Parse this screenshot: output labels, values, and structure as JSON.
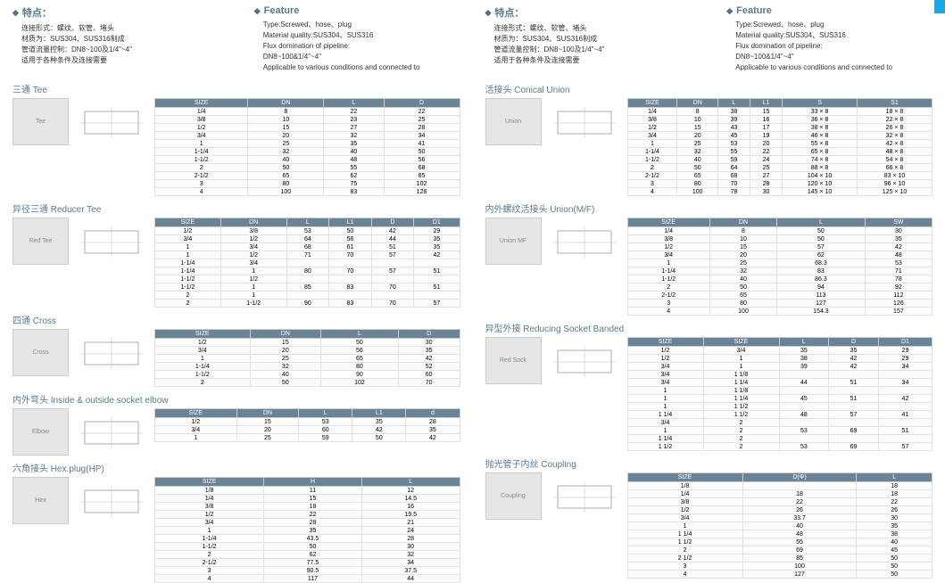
{
  "left": {
    "header_cn": {
      "title": "特点：",
      "lines": [
        "连接形式：螺纹、软管、堵头",
        "材质为：SUS304、SUS316制成",
        "管道流量控制：DN8~100及1/4\"~4\"",
        "适用于各种条件及连接需要"
      ]
    },
    "header_en": {
      "title": "Feature",
      "lines": [
        "Type:Screwed、hose、plug",
        "Material quality:SUS304、SUS316",
        "Flux domination of pipeline:",
        "DN8~100&1/4\"~4\"",
        "Applicable to various conditions and connected to"
      ]
    },
    "sections": [
      {
        "title": "三通 Tee",
        "photo": "Tee",
        "headers": [
          "SIZE",
          "DN",
          "L",
          "D"
        ],
        "rows": [
          [
            "1/4",
            "8",
            "22",
            "22"
          ],
          [
            "3/8",
            "10",
            "23",
            "25"
          ],
          [
            "1/2",
            "15",
            "27",
            "28"
          ],
          [
            "3/4",
            "20",
            "32",
            "34"
          ],
          [
            "1",
            "25",
            "35",
            "41"
          ],
          [
            "1-1/4",
            "32",
            "40",
            "50"
          ],
          [
            "1-1/2",
            "40",
            "48",
            "56"
          ],
          [
            "2",
            "50",
            "55",
            "68"
          ],
          [
            "2-1/2",
            "65",
            "62",
            "85"
          ],
          [
            "3",
            "80",
            "75",
            "102"
          ],
          [
            "4",
            "100",
            "83",
            "128"
          ]
        ]
      },
      {
        "title": "异径三通 Reducer Tee",
        "photo": "Red Tee",
        "headers": [
          "SIZE",
          "DN",
          "L",
          "L1",
          "D",
          "D1"
        ],
        "rows": [
          [
            "1/2",
            "3/8",
            "53",
            "50",
            "42",
            "29"
          ],
          [
            "3/4",
            "1/2",
            "64",
            "56",
            "44",
            "35"
          ],
          [
            "1",
            "3/4",
            "68",
            "61",
            "51",
            "35"
          ],
          [
            "1",
            "1/2",
            "71",
            "70",
            "57",
            "42"
          ],
          [
            "1-1/4",
            "3/4",
            "",
            "",
            "",
            ""
          ],
          [
            "1-1/4",
            "1",
            "80",
            "70",
            "57",
            "51"
          ],
          [
            "1-1/2",
            "1/2",
            "",
            "",
            "",
            ""
          ],
          [
            "1-1/2",
            "1",
            "85",
            "83",
            "70",
            "51"
          ],
          [
            "2",
            "1",
            "",
            "",
            "",
            ""
          ],
          [
            "2",
            "1-1/2",
            "90",
            "83",
            "70",
            "57"
          ]
        ]
      },
      {
        "title": "四通 Cross",
        "photo": "Cross",
        "headers": [
          "SIZE",
          "DN",
          "L",
          "D"
        ],
        "rows": [
          [
            "1/2",
            "15",
            "50",
            "30"
          ],
          [
            "3/4",
            "20",
            "56",
            "35"
          ],
          [
            "1",
            "25",
            "65",
            "42"
          ],
          [
            "1-1/4",
            "32",
            "80",
            "52"
          ],
          [
            "1-1/2",
            "40",
            "90",
            "60"
          ],
          [
            "2",
            "50",
            "102",
            "70"
          ]
        ]
      },
      {
        "title": "内外弯头 Inside & outside socket elbow",
        "photo": "Elbow",
        "headers": [
          "SIZE",
          "DN",
          "L",
          "L1",
          "d"
        ],
        "rows": [
          [
            "1/2",
            "15",
            "53",
            "35",
            "28"
          ],
          [
            "3/4",
            "20",
            "60",
            "42",
            "35"
          ],
          [
            "1",
            "25",
            "59",
            "50",
            "42"
          ]
        ]
      },
      {
        "title": "六角接头 Hex.plug(HP)",
        "photo": "Hex",
        "headers": [
          "SIZE",
          "H",
          "L"
        ],
        "rows": [
          [
            "1/8",
            "11",
            "12"
          ],
          [
            "1/4",
            "15",
            "14.5"
          ],
          [
            "3/8",
            "18",
            "16"
          ],
          [
            "1/2",
            "22",
            "19.5"
          ],
          [
            "3/4",
            "28",
            "21"
          ],
          [
            "1",
            "35",
            "24"
          ],
          [
            "1-1/4",
            "43.5",
            "28"
          ],
          [
            "1-1/2",
            "50",
            "30"
          ],
          [
            "2",
            "62",
            "32"
          ],
          [
            "2-1/2",
            "77.5",
            "34"
          ],
          [
            "3",
            "90.5",
            "37.5"
          ],
          [
            "4",
            "117",
            "44"
          ]
        ]
      }
    ]
  },
  "right": {
    "header_cn": {
      "title": "特点：",
      "lines": [
        "连接形式：螺纹、软管、堵头",
        "材质为：SUS304、SUS316制成",
        "管道流量控制：DN8~100及1/4\"~4\"",
        "适用于各种条件及连接需要"
      ]
    },
    "header_en": {
      "title": "Feature",
      "lines": [
        "Type:Screwed、hose、plug",
        "Material quality:SUS304、SUS316",
        "Flux domination of pipeline:",
        "DN8~100&1/4\"~4\"",
        "Applicable to various conditions and connected to"
      ]
    },
    "sections": [
      {
        "title": "活接头 Conical Union",
        "photo": "Union",
        "headers": [
          "SIZE",
          "DN",
          "L",
          "L1",
          "S",
          "S1"
        ],
        "rows": [
          [
            "1/4",
            "8",
            "38",
            "15",
            "33 × 8",
            "18 × 8"
          ],
          [
            "3/8",
            "10",
            "39",
            "16",
            "36 × 8",
            "22 × 8"
          ],
          [
            "1/2",
            "15",
            "43",
            "17",
            "38 × 8",
            "26 × 8"
          ],
          [
            "3/4",
            "20",
            "45",
            "19",
            "46 × 8",
            "32 × 8"
          ],
          [
            "1",
            "25",
            "53",
            "20",
            "55 × 8",
            "42 × 8"
          ],
          [
            "1-1/4",
            "32",
            "55",
            "22",
            "65 × 8",
            "48 × 8"
          ],
          [
            "1-1/2",
            "40",
            "59",
            "24",
            "74 × 8",
            "54 × 8"
          ],
          [
            "2",
            "50",
            "64",
            "25",
            "88 × 8",
            "66 × 8"
          ],
          [
            "2-1/2",
            "65",
            "68",
            "27",
            "104 × 10",
            "83 × 10"
          ],
          [
            "3",
            "80",
            "70",
            "28",
            "120 × 10",
            "96 × 10"
          ],
          [
            "4",
            "100",
            "78",
            "30",
            "145 × 10",
            "125 × 10"
          ]
        ]
      },
      {
        "title": "内外螺纹活接头 Union(M/F)",
        "photo": "Union MF",
        "headers": [
          "SIZE",
          "DN",
          "L",
          "SW"
        ],
        "rows": [
          [
            "1/4",
            "8",
            "50",
            "30"
          ],
          [
            "3/8",
            "10",
            "50",
            "35"
          ],
          [
            "1/2",
            "15",
            "57",
            "42"
          ],
          [
            "3/4",
            "20",
            "62",
            "48"
          ],
          [
            "1",
            "25",
            "68.3",
            "53"
          ],
          [
            "1-1/4",
            "32",
            "83",
            "71"
          ],
          [
            "1-1/2",
            "40",
            "86.3",
            "78"
          ],
          [
            "2",
            "50",
            "94",
            "92"
          ],
          [
            "2-1/2",
            "65",
            "113",
            "112"
          ],
          [
            "3",
            "80",
            "127",
            "126"
          ],
          [
            "4",
            "100",
            "154.3",
            "157"
          ]
        ]
      },
      {
        "title": "异型外接 Reducing Socket Banded",
        "photo": "Red Sock",
        "headers": [
          "SIZE",
          "SIZE",
          "L",
          "D",
          "D1"
        ],
        "rows": [
          [
            "1/2",
            "3/4",
            "35",
            "35",
            "29"
          ],
          [
            "1/2",
            "1",
            "38",
            "42",
            "29"
          ],
          [
            "3/4",
            "1",
            "39",
            "42",
            "34"
          ],
          [
            "3/4",
            "1 1/8",
            "",
            "",
            ""
          ],
          [
            "3/4",
            "1 1/4",
            "44",
            "51",
            "34"
          ],
          [
            "1",
            "1 1/8",
            "",
            "",
            ""
          ],
          [
            "1",
            "1 1/4",
            "45",
            "51",
            "42"
          ],
          [
            "1",
            "1 1/2",
            "",
            "",
            ""
          ],
          [
            "1 1/4",
            "1 1/2",
            "48",
            "57",
            "41"
          ],
          [
            "3/4",
            "2",
            "",
            "",
            ""
          ],
          [
            "1",
            "2",
            "53",
            "69",
            "51"
          ],
          [
            "1 1/4",
            "2",
            "",
            "",
            ""
          ],
          [
            "1 1/2",
            "2",
            "53",
            "69",
            "57"
          ]
        ]
      },
      {
        "title": "抛光管子内丝 Coupling",
        "photo": "Coupling",
        "headers": [
          "SIZE",
          "D(Φ)",
          "L"
        ],
        "rows": [
          [
            "1/8",
            "",
            "18"
          ],
          [
            "1/4",
            "18",
            "18"
          ],
          [
            "3/8",
            "22",
            "22"
          ],
          [
            "1/2",
            "26",
            "26"
          ],
          [
            "3/4",
            "33.7",
            "30"
          ],
          [
            "1",
            "40",
            "35"
          ],
          [
            "1 1/4",
            "48",
            "38"
          ],
          [
            "1 1/2",
            "55",
            "40"
          ],
          [
            "2",
            "69",
            "45"
          ],
          [
            "2 1/2",
            "85",
            "50"
          ],
          [
            "3",
            "100",
            "50"
          ],
          [
            "4",
            "127",
            "50"
          ]
        ]
      }
    ]
  }
}
